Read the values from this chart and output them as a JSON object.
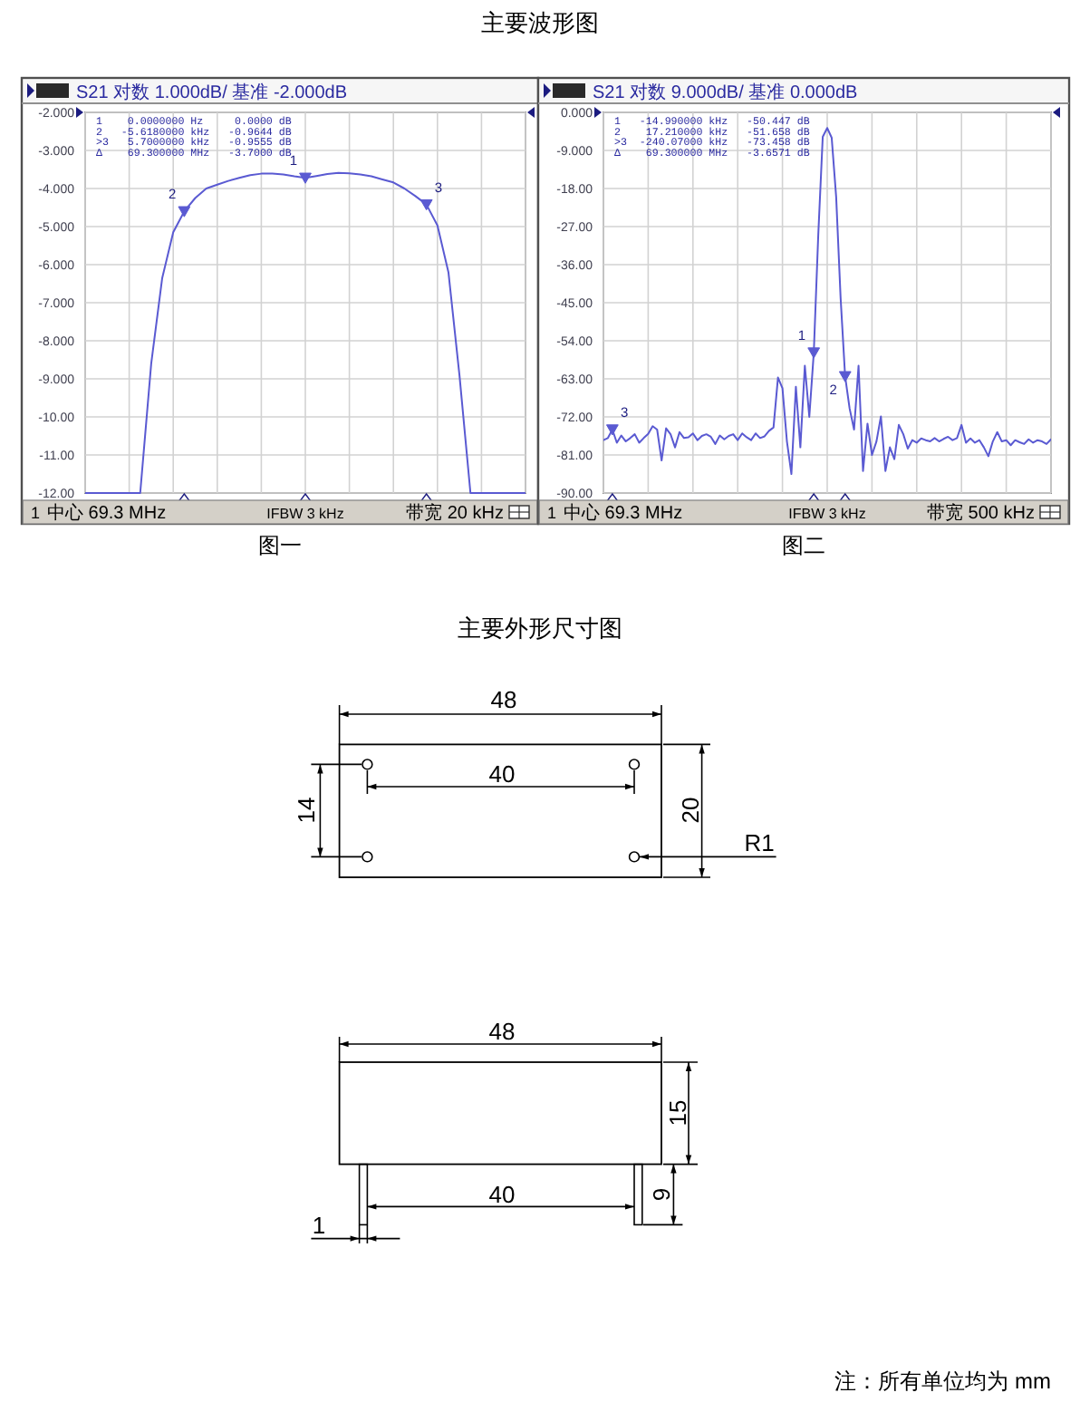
{
  "chart_data": [
    {
      "type": "line",
      "title": "主要波形图",
      "subtitle": "S21 对数 1.000dB/ 基准 -2.000dB",
      "categories": [
        null,
        null,
        null,
        null,
        null,
        null,
        null,
        null,
        null,
        null,
        null,
        null,
        null,
        null,
        null,
        null,
        null,
        null,
        null,
        null,
        null,
        null,
        null,
        null,
        null,
        null,
        null,
        null,
        null,
        null,
        null,
        null,
        null,
        null,
        null,
        null,
        null,
        null,
        null,
        null,
        null
      ],
      "series": [
        {
          "type": "line",
          "color": "#5a5ad2",
          "values": [
            -12,
            -12,
            -12,
            -12,
            -12,
            -12,
            -8.6,
            -6.35,
            -5.15,
            -4.6,
            -4.25,
            -4.0,
            -3.9,
            -3.8,
            -3.72,
            -3.65,
            -3.61,
            -3.61,
            -3.63,
            -3.68,
            -3.72,
            -3.67,
            -3.62,
            -3.59,
            -3.6,
            -3.63,
            -3.68,
            -3.76,
            -3.84,
            -4.0,
            -4.2,
            -4.42,
            -4.97,
            -6.2,
            -8.9,
            -12,
            -12,
            -12,
            -12,
            -12,
            -12
          ]
        },
        {
          "type": "scatter",
          "color": "#5a5ad2",
          "marker": "triangle",
          "values": [
            null,
            null,
            null,
            null,
            null,
            null,
            null,
            null,
            null,
            -4.6,
            null,
            null,
            null,
            null,
            null,
            null,
            null,
            null,
            null,
            null,
            -3.72,
            null,
            null,
            null,
            null,
            null,
            null,
            null,
            null,
            null,
            null,
            -4.42,
            null,
            null,
            null,
            null,
            null,
            null,
            null,
            null,
            null
          ]
        }
      ],
      "ylim": [
        -12,
        -2
      ],
      "yticks": [
        {
          "value": -2,
          "label": "-2.000"
        },
        {
          "value": -3,
          "label": "-3.000"
        },
        {
          "value": -4,
          "label": "-4.000"
        },
        {
          "value": -5,
          "label": "-5.000"
        },
        {
          "value": -6,
          "label": "-6.000"
        },
        {
          "value": -7,
          "label": "-7.000"
        },
        {
          "value": -8,
          "label": "-8.000"
        },
        {
          "value": -9,
          "label": "-9.000"
        },
        {
          "value": -10,
          "label": "-10.00"
        },
        {
          "value": -11,
          "label": "-11.00"
        },
        {
          "value": -12,
          "label": "-12.00"
        }
      ],
      "grid": true,
      "tick_labels": "y",
      "annotations": [
        "1    0.0000000 Hz     0.0000 dB",
        "2   -5.6180000 kHz   -0.9644 dB",
        ">3   5.7000000 kHz   -0.9555 dB",
        "Δ    69.300000 MHz   -3.7000 dB",
        "2",
        "1",
        "3",
        "1",
        "中心 69.3 MHz",
        "IFBW 3 kHz",
        "带宽 20 kHz",
        "图一"
      ]
    },
    {
      "type": "line",
      "subtitle": "S21 对数 9.000dB/ 基准 0.000dB",
      "categories": [
        null,
        null,
        null,
        null,
        null,
        null,
        null,
        null,
        null,
        null,
        null,
        null,
        null,
        null,
        null,
        null,
        null,
        null,
        null,
        null,
        null,
        null,
        null,
        null,
        null,
        null,
        null,
        null,
        null,
        null,
        null,
        null,
        null,
        null,
        null,
        null,
        null,
        null,
        null,
        null,
        null,
        null,
        null,
        null,
        null,
        null,
        null,
        null,
        null,
        null,
        null,
        null,
        null,
        null,
        null,
        null,
        null,
        null,
        null,
        null,
        null,
        null,
        null,
        null,
        null,
        null,
        null,
        null,
        null,
        null,
        null,
        null,
        null,
        null,
        null,
        null,
        null,
        null,
        null,
        null,
        null,
        null,
        null,
        null,
        null,
        null,
        null,
        null,
        null,
        null,
        null,
        null,
        null,
        null,
        null,
        null,
        null,
        null,
        null,
        null,
        null
      ],
      "series": [
        {
          "type": "line",
          "color": "#5a5ad2",
          "values": [
            -77.5,
            -77.0,
            -75.0,
            -78.1,
            -76.4,
            -77.8,
            -77.0,
            -76.1,
            -78.1,
            -77.0,
            -76.0,
            -74.2,
            -75.0,
            -82.3,
            -74.7,
            -76.1,
            -79.2,
            -75.6,
            -77.0,
            -76.8,
            -75.9,
            -77.5,
            -76.5,
            -76.1,
            -76.7,
            -78.4,
            -76.4,
            -77.3,
            -76.5,
            -76.1,
            -77.5,
            -75.9,
            -76.8,
            -77.5,
            -75.9,
            -77.0,
            -76.6,
            -75.3,
            -74.5,
            -62.7,
            -65.2,
            -77.8,
            -85.5,
            -64.9,
            -79.2,
            -59.9,
            -72.0,
            -56.8,
            -29.0,
            -5.8,
            -3.7,
            -6.0,
            -20.0,
            -44.0,
            -62.4,
            -70.0,
            -75.0,
            -59.9,
            -84.8,
            -73.6,
            -81.0,
            -77.8,
            -71.9,
            -84.8,
            -79.2,
            -82.0,
            -73.9,
            -76.1,
            -79.5,
            -77.5,
            -78.1,
            -77.1,
            -77.5,
            -77.8,
            -77.0,
            -77.8,
            -77.2,
            -76.7,
            -77.5,
            -77.0,
            -73.9,
            -78.1,
            -77.1,
            -78.1,
            -77.5,
            -79.2,
            -81.3,
            -77.8,
            -75.6,
            -77.8,
            -77.5,
            -78.7,
            -77.5,
            -78.0,
            -78.4,
            -77.3,
            -78.1,
            -77.5,
            -77.8,
            -78.4,
            -77.3
          ]
        },
        {
          "type": "scatter",
          "color": "#5a5ad2",
          "marker": "triangle",
          "values": [
            null,
            null,
            -75.0,
            null,
            null,
            null,
            null,
            null,
            null,
            null,
            null,
            null,
            null,
            null,
            null,
            null,
            null,
            null,
            null,
            null,
            null,
            null,
            null,
            null,
            null,
            null,
            null,
            null,
            null,
            null,
            null,
            null,
            null,
            null,
            null,
            null,
            null,
            null,
            null,
            null,
            null,
            null,
            null,
            null,
            null,
            null,
            null,
            -56.8,
            null,
            null,
            null,
            null,
            null,
            null,
            -62.4,
            null,
            null,
            null,
            null,
            null,
            null,
            null,
            null,
            null,
            null,
            null,
            null,
            null,
            null,
            null,
            null,
            null,
            null,
            null,
            null,
            null,
            null,
            null,
            null,
            null,
            null,
            null,
            null,
            null,
            null,
            null,
            null,
            null,
            null,
            null,
            null,
            null,
            null,
            null,
            null,
            null,
            null,
            null,
            null,
            null,
            null
          ]
        }
      ],
      "ylim": [
        -90,
        0
      ],
      "yticks": [
        {
          "value": 0,
          "label": "0.000"
        },
        {
          "value": -9,
          "label": "-9.000"
        },
        {
          "value": -18,
          "label": "-18.00"
        },
        {
          "value": -27,
          "label": "-27.00"
        },
        {
          "value": -36,
          "label": "-36.00"
        },
        {
          "value": -45,
          "label": "-45.00"
        },
        {
          "value": -54,
          "label": "-54.00"
        },
        {
          "value": -63,
          "label": "-63.00"
        },
        {
          "value": -72,
          "label": "-72.00"
        },
        {
          "value": -81,
          "label": "-81.00"
        },
        {
          "value": -90,
          "label": "-90.00"
        }
      ],
      "grid": true,
      "tick_labels": "y",
      "annotations": [
        "1   -14.990000 kHz   -50.447 dB",
        "2    17.210000 kHz   -51.658 dB",
        ">3  -240.07000 kHz   -73.458 dB",
        "Δ    69.300000 MHz   -3.6571 dB",
        "3",
        "1",
        "2",
        "1",
        "中心 69.3 MHz",
        "IFBW 3 kHz",
        "带宽 500 kHz",
        "图二"
      ]
    },
    {
      "type": "other",
      "title": "主要外形尺寸图",
      "annotations": [
        "48",
        "40",
        "14",
        "20",
        "R1",
        "48",
        "15",
        "40",
        "9",
        "1",
        "注：所有单位均为 mm"
      ]
    }
  ]
}
